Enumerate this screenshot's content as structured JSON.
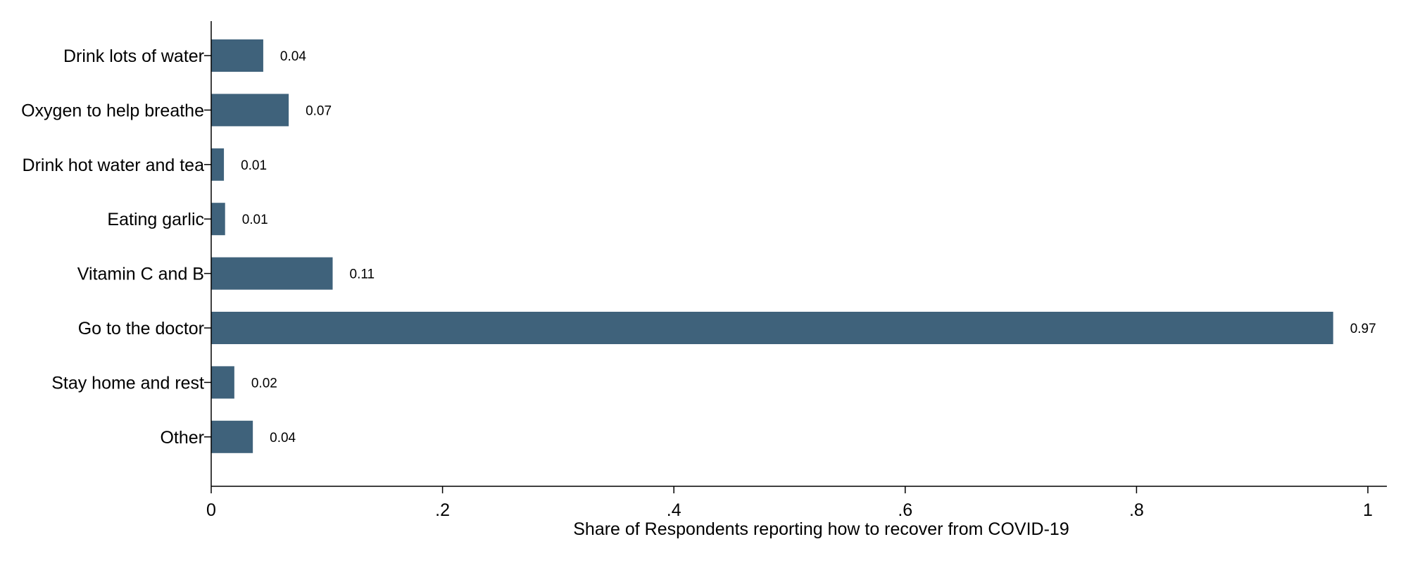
{
  "chart_data": {
    "type": "bar",
    "orientation": "horizontal",
    "categories": [
      "Drink lots of water",
      "Oxygen to help breathe",
      "Drink hot water and tea",
      "Eating garlic",
      "Vitamin C and B",
      "Go to the doctor",
      "Stay home and rest",
      "Other"
    ],
    "values": [
      0.045,
      0.067,
      0.011,
      0.012,
      0.105,
      0.97,
      0.02,
      0.036
    ],
    "value_labels": [
      "0.04",
      "0.07",
      "0.01",
      "0.01",
      "0.11",
      "0.97",
      "0.02",
      "0.04"
    ],
    "title": "",
    "xlabel": "Share of Respondents reporting how to recover from COVID-19",
    "ylabel": "",
    "xlim": [
      0,
      1
    ],
    "xticks": [
      0,
      0.2,
      0.4,
      0.6,
      0.8,
      1
    ],
    "xtick_labels": [
      "0",
      ".2",
      ".4",
      ".6",
      ".8",
      "1"
    ],
    "grid": false,
    "legend": "none",
    "bar_color": "#3f627b"
  }
}
